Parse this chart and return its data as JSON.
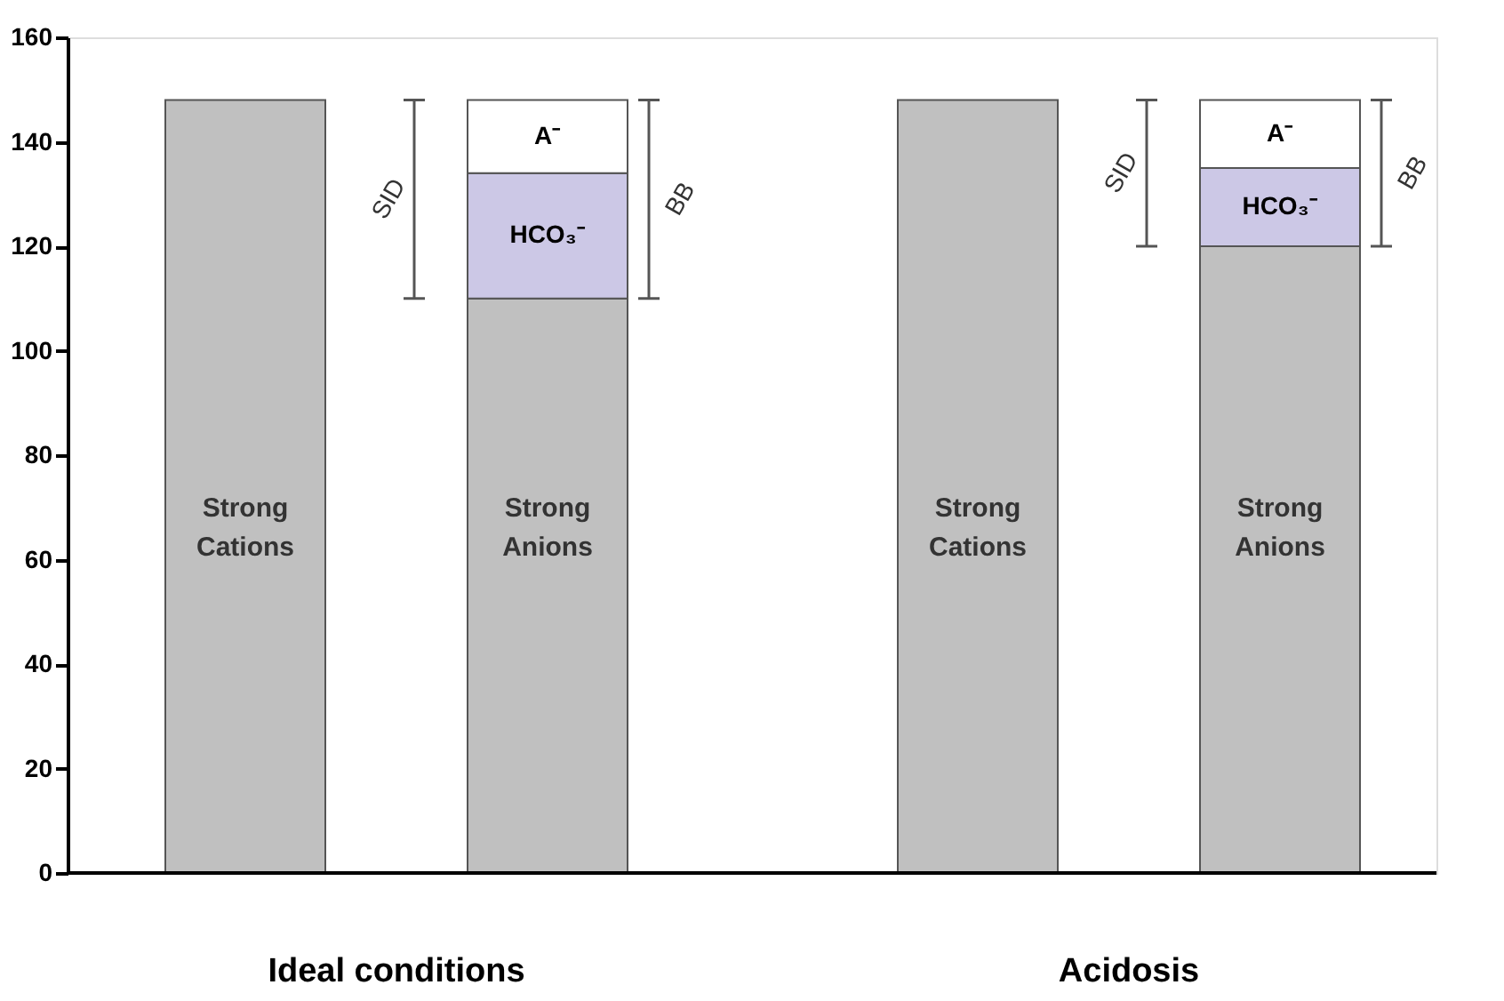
{
  "chart_data": {
    "type": "bar",
    "stacked": true,
    "categories": [
      "Strong Cations",
      "Strong Anions",
      "Strong Cations",
      "Strong Anions"
    ],
    "series": [
      {
        "color": "#c0c0c0",
        "values": [
          148,
          110,
          148,
          120
        ]
      },
      {
        "name": "HCO₃⁻",
        "color": "#ccc8e6",
        "values": [
          null,
          24,
          null,
          15
        ]
      },
      {
        "name": "A⁻",
        "color": "#ffffff",
        "values": [
          null,
          14,
          null,
          13
        ]
      }
    ],
    "ylim": [
      0,
      160
    ],
    "yticks": [
      0,
      20,
      40,
      60,
      80,
      100,
      120,
      140,
      160
    ],
    "grid": false,
    "annotations": [
      "SID",
      "BB",
      "SID",
      "BB",
      "Ideal conditions",
      "Acidosis"
    ]
  }
}
